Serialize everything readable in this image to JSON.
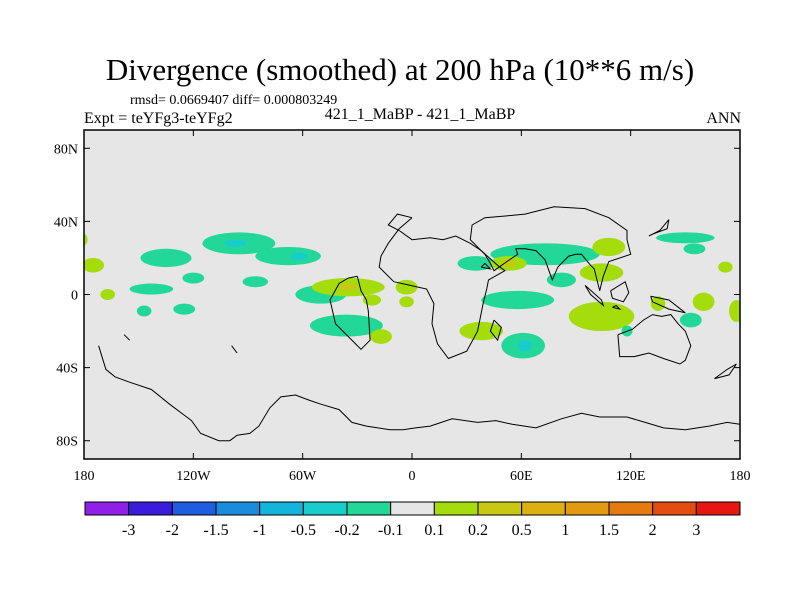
{
  "title": "Divergence (smoothed) at 200 hPa (10**6 m/s)",
  "stats": "rmsd= 0.0669407 diff= 0.000803249",
  "expt": "Expt = teYFg3-teYFg2",
  "center_label": "421_1_MaBP - 421_1_MaBP",
  "season": "ANN",
  "chart_data": {
    "type": "heatmap",
    "projection": "cylindrical equidistant",
    "xlim": [
      -180,
      180
    ],
    "ylim": [
      -90,
      90
    ],
    "x_ticks": [
      {
        "value": -180,
        "label": "180"
      },
      {
        "value": -120,
        "label": "120W"
      },
      {
        "value": -60,
        "label": "60W"
      },
      {
        "value": 0,
        "label": "0"
      },
      {
        "value": 60,
        "label": "60E"
      },
      {
        "value": 120,
        "label": "120E"
      },
      {
        "value": 180,
        "label": "180"
      }
    ],
    "y_ticks": [
      {
        "value": 80,
        "label": "80N"
      },
      {
        "value": 40,
        "label": "40N"
      },
      {
        "value": 0,
        "label": "0"
      },
      {
        "value": -40,
        "label": "40S"
      },
      {
        "value": -80,
        "label": "80S"
      }
    ],
    "background_color": "#e6e6e6",
    "colorbar": {
      "colors": [
        "#8f20e8",
        "#3a1cdc",
        "#1e5ce0",
        "#1b8cdc",
        "#14b4dc",
        "#18cccc",
        "#22d898",
        "#e6e6e6",
        "#a4dc0c",
        "#c8c814",
        "#dcb010",
        "#e49a10",
        "#e47a10",
        "#e24c10",
        "#e41810"
      ],
      "labels": [
        "-3",
        "-2",
        "-1.5",
        "-1",
        "-0.5",
        "-0.2",
        "-0.1",
        "0.1",
        "0.2",
        "0.5",
        "1",
        "1.5",
        "2",
        "3"
      ]
    },
    "regions": [
      {
        "level": "-0.1",
        "lon": -95,
        "lat": 28,
        "rlon": 20,
        "rlat": 6
      },
      {
        "level": "-0.2",
        "lon": -97,
        "lat": 28,
        "rlon": 6,
        "rlat": 2
      },
      {
        "level": "-0.1",
        "lon": -135,
        "lat": 20,
        "rlon": 14,
        "rlat": 5
      },
      {
        "level": "-0.1",
        "lon": -68,
        "lat": 21,
        "rlon": 18,
        "rlat": 5
      },
      {
        "level": "-0.2",
        "lon": -62,
        "lat": 21,
        "rlon": 5,
        "rlat": 2
      },
      {
        "level": "-0.1",
        "lon": -120,
        "lat": 9,
        "rlon": 6,
        "rlat": 3
      },
      {
        "level": "-0.1",
        "lon": -86,
        "lat": 7,
        "rlon": 7,
        "rlat": 3
      },
      {
        "level": "-0.1",
        "lon": -50,
        "lat": 0,
        "rlon": 14,
        "rlat": 5
      },
      {
        "level": "0.1",
        "lon": -35,
        "lat": 4,
        "rlon": 20,
        "rlat": 5
      },
      {
        "level": "0.2",
        "lon": -35,
        "lat": 4,
        "rlon": 5,
        "rlat": 2
      },
      {
        "level": "0.1",
        "lon": -3,
        "lat": 4,
        "rlon": 6,
        "rlat": 4
      },
      {
        "level": "-0.1",
        "lon": -143,
        "lat": 3,
        "rlon": 12,
        "rlat": 3
      },
      {
        "level": "0.1",
        "lon": -167,
        "lat": 0,
        "rlon": 4,
        "rlat": 3
      },
      {
        "level": "-0.1",
        "lon": -147,
        "lat": -9,
        "rlon": 4,
        "rlat": 3
      },
      {
        "level": "-0.1",
        "lon": -125,
        "lat": -8,
        "rlon": 6,
        "rlat": 3
      },
      {
        "level": "-0.1",
        "lon": -36,
        "lat": -17,
        "rlon": 20,
        "rlat": 6
      },
      {
        "level": "0.1",
        "lon": -22,
        "lat": -3,
        "rlon": 5,
        "rlat": 3
      },
      {
        "level": "0.1",
        "lon": -3,
        "lat": -4,
        "rlon": 4,
        "rlat": 3
      },
      {
        "level": "0.1",
        "lon": -17,
        "lat": -23,
        "rlon": 6,
        "rlat": 4
      },
      {
        "level": "0.1",
        "lon": -175,
        "lat": 16,
        "rlon": 6,
        "rlat": 4
      },
      {
        "level": "0.1",
        "lon": -180,
        "lat": 30,
        "rlon": 2,
        "rlat": 3
      },
      {
        "level": "0.1",
        "lon": 172,
        "lat": 15,
        "rlon": 4,
        "rlat": 3
      },
      {
        "level": "-0.1",
        "lon": 73,
        "lat": 22,
        "rlon": 30,
        "rlat": 6
      },
      {
        "level": "-0.1",
        "lon": 35,
        "lat": 17,
        "rlon": 10,
        "rlat": 4
      },
      {
        "level": "0.1",
        "lon": 53,
        "lat": 17,
        "rlon": 10,
        "rlat": 4
      },
      {
        "level": "0.2",
        "lon": 53,
        "lat": 17,
        "rlon": 4,
        "rlat": 2
      },
      {
        "level": "0.1",
        "lon": 108,
        "lat": 26,
        "rlon": 9,
        "rlat": 5
      },
      {
        "level": "0.1",
        "lon": 104,
        "lat": 12,
        "rlon": 12,
        "rlat": 5
      },
      {
        "level": "-0.1",
        "lon": 82,
        "lat": 8,
        "rlon": 8,
        "rlat": 4
      },
      {
        "level": "-0.1",
        "lon": 58,
        "lat": -3,
        "rlon": 20,
        "rlat": 5
      },
      {
        "level": "-0.1",
        "lon": 150,
        "lat": 31,
        "rlon": 16,
        "rlat": 3
      },
      {
        "level": "-0.1",
        "lon": 155,
        "lat": 25,
        "rlon": 6,
        "rlat": 3
      },
      {
        "level": "0.1",
        "lon": 104,
        "lat": -12,
        "rlon": 18,
        "rlat": 8
      },
      {
        "level": "0.1",
        "lon": 38,
        "lat": -20,
        "rlon": 12,
        "rlat": 5
      },
      {
        "level": "-0.1",
        "lon": 61,
        "lat": -28,
        "rlon": 12,
        "rlat": 7
      },
      {
        "level": "-0.2",
        "lon": 62,
        "lat": -28,
        "rlon": 4,
        "rlat": 3
      },
      {
        "level": "-0.1",
        "lon": 118,
        "lat": -20,
        "rlon": 3,
        "rlat": 3
      },
      {
        "level": "0.1",
        "lon": 135,
        "lat": -5,
        "rlon": 4,
        "rlat": 4
      },
      {
        "level": "0.1",
        "lon": 160,
        "lat": -4,
        "rlon": 6,
        "rlat": 5
      },
      {
        "level": "-0.1",
        "lon": 153,
        "lat": -14,
        "rlon": 6,
        "rlat": 4
      },
      {
        "level": "0.1",
        "lon": 178,
        "lat": -9,
        "rlon": 4,
        "rlat": 6
      }
    ],
    "coastlines": [
      [
        [
          -30,
          10
        ],
        [
          -28,
          2
        ],
        [
          -25,
          -3
        ],
        [
          -24,
          -9
        ],
        [
          -23,
          -25
        ],
        [
          -28,
          -30
        ],
        [
          -32,
          -26
        ],
        [
          -42,
          -16
        ],
        [
          -45,
          -3
        ],
        [
          -40,
          6
        ],
        [
          -35,
          9
        ],
        [
          -30,
          10
        ]
      ],
      [
        [
          -172,
          -28
        ],
        [
          -168,
          -41
        ],
        [
          -163,
          -45
        ],
        [
          -155,
          -48
        ],
        [
          -143,
          -52
        ],
        [
          -133,
          -60
        ],
        [
          -125,
          -66
        ],
        [
          -121,
          -69
        ],
        [
          -116,
          -76
        ],
        [
          -106,
          -80
        ],
        [
          -100,
          -80
        ],
        [
          -96,
          -77
        ],
        [
          -89,
          -76
        ],
        [
          -84,
          -72
        ],
        [
          -78,
          -62
        ],
        [
          -72,
          -56
        ],
        [
          -64,
          -55
        ],
        [
          -56,
          -58
        ],
        [
          -50,
          -60
        ],
        [
          -40,
          -63
        ],
        [
          -33,
          -70
        ],
        [
          -25,
          -72
        ],
        [
          -12,
          -74
        ],
        [
          -5,
          -74
        ],
        [
          2,
          -73
        ],
        [
          10,
          -72
        ],
        [
          22,
          -68
        ],
        [
          36,
          -70
        ],
        [
          46,
          -69
        ],
        [
          55,
          -71
        ],
        [
          68,
          -73
        ],
        [
          82,
          -68
        ],
        [
          93,
          -65
        ],
        [
          103,
          -67
        ],
        [
          118,
          -67
        ],
        [
          128,
          -70
        ],
        [
          138,
          -73
        ],
        [
          150,
          -74
        ],
        [
          163,
          -72
        ],
        [
          173,
          -70
        ],
        [
          180,
          -71
        ]
      ],
      [
        [
          0,
          42
        ],
        [
          -8,
          44
        ],
        [
          -13,
          38
        ],
        [
          -7,
          35
        ],
        [
          0,
          30
        ],
        [
          10,
          31
        ],
        [
          17,
          30
        ],
        [
          24,
          32
        ],
        [
          32,
          28
        ],
        [
          38,
          24
        ],
        [
          47,
          16
        ],
        [
          51,
          13
        ],
        [
          42,
          8
        ],
        [
          41,
          3
        ],
        [
          39,
          -5
        ],
        [
          36,
          -20
        ],
        [
          30,
          -31
        ],
        [
          20,
          -35
        ],
        [
          14,
          -27
        ],
        [
          11,
          -16
        ],
        [
          12,
          -5
        ],
        [
          8,
          3
        ],
        [
          -1,
          5
        ],
        [
          -10,
          7
        ],
        [
          -18,
          15
        ],
        [
          -17,
          21
        ],
        [
          -13,
          28
        ],
        [
          -7,
          36
        ],
        [
          0,
          42
        ]
      ],
      [
        [
          45,
          -14
        ],
        [
          49,
          -18
        ],
        [
          47,
          -25
        ],
        [
          43,
          -20
        ],
        [
          45,
          -14
        ]
      ],
      [
        [
          38,
          15
        ],
        [
          40,
          17
        ],
        [
          43,
          14
        ],
        [
          38,
          15
        ]
      ],
      [
        [
          113,
          -22
        ],
        [
          114,
          -34
        ],
        [
          122,
          -34
        ],
        [
          130,
          -32
        ],
        [
          138,
          -35
        ],
        [
          147,
          -38
        ],
        [
          150,
          -36
        ],
        [
          153,
          -28
        ],
        [
          150,
          -20
        ],
        [
          146,
          -16
        ],
        [
          142,
          -11
        ],
        [
          137,
          -12
        ],
        [
          132,
          -11
        ],
        [
          127,
          -14
        ],
        [
          121,
          -19
        ],
        [
          113,
          -22
        ]
      ],
      [
        [
          118,
          30
        ],
        [
          120,
          22
        ],
        [
          108,
          18
        ],
        [
          105,
          10
        ],
        [
          103,
          2
        ],
        [
          100,
          14
        ],
        [
          98,
          16
        ],
        [
          93,
          22
        ],
        [
          90,
          22
        ],
        [
          86,
          21
        ],
        [
          80,
          15
        ],
        [
          77,
          8
        ],
        [
          73,
          19
        ],
        [
          68,
          24
        ],
        [
          62,
          25
        ],
        [
          57,
          25
        ],
        [
          58,
          22
        ],
        [
          52,
          18
        ],
        [
          45,
          13
        ],
        [
          43,
          17
        ],
        [
          40,
          22
        ],
        [
          32,
          30
        ],
        [
          33,
          38
        ],
        [
          40,
          42
        ],
        [
          52,
          43
        ],
        [
          62,
          44
        ],
        [
          78,
          48
        ],
        [
          95,
          47
        ],
        [
          108,
          42
        ],
        [
          118,
          35
        ],
        [
          118,
          30
        ]
      ],
      [
        [
          95,
          5
        ],
        [
          104,
          -3
        ],
        [
          105,
          -6
        ],
        [
          98,
          0
        ],
        [
          95,
          5
        ]
      ],
      [
        [
          110,
          -7
        ],
        [
          114,
          -8
        ],
        [
          112,
          -6
        ],
        [
          110,
          -7
        ]
      ],
      [
        [
          109,
          2
        ],
        [
          117,
          7
        ],
        [
          119,
          1
        ],
        [
          116,
          -4
        ],
        [
          110,
          -2
        ],
        [
          109,
          2
        ]
      ],
      [
        [
          131,
          -1
        ],
        [
          141,
          -3
        ],
        [
          150,
          -10
        ],
        [
          141,
          -8
        ],
        [
          132,
          -4
        ],
        [
          131,
          -1
        ]
      ],
      [
        [
          130,
          32
        ],
        [
          136,
          35
        ],
        [
          141,
          41
        ],
        [
          140,
          36
        ],
        [
          132,
          33
        ],
        [
          130,
          32
        ]
      ],
      [
        [
          166,
          -46
        ],
        [
          173,
          -41
        ],
        [
          178,
          -38
        ],
        [
          174,
          -44
        ],
        [
          166,
          -46
        ]
      ],
      [
        [
          -99,
          -28
        ],
        [
          -96,
          -32
        ]
      ],
      [
        [
          -158,
          -22
        ],
        [
          -155,
          -25
        ]
      ]
    ]
  }
}
